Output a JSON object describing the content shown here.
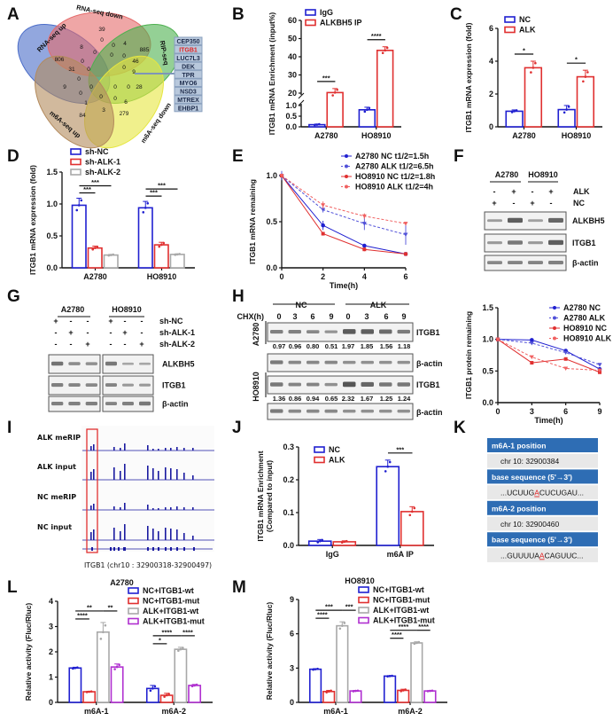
{
  "panel_labels": [
    "A",
    "B",
    "C",
    "D",
    "E",
    "F",
    "G",
    "H",
    "I",
    "J",
    "K",
    "L",
    "M"
  ],
  "venn": {
    "sets": [
      {
        "name": "RNA-seq up",
        "color": "#4a6cc8"
      },
      {
        "name": "RNA-seq down",
        "color": "#e56b6b"
      },
      {
        "name": "RIP-seq",
        "color": "#4db04f"
      },
      {
        "name": "m6A-seq down",
        "color": "#e6e640"
      },
      {
        "name": "m6A-seq up",
        "color": "#b38a5c"
      }
    ],
    "counts": [
      "39",
      "0",
      "0",
      "4",
      "885",
      "806",
      "8",
      "0",
      "0",
      "0",
      "46",
      "31",
      "0",
      "0",
      "0",
      "9",
      "0",
      "0",
      "0",
      "0",
      "28",
      "9",
      "0",
      "1",
      "0",
      "0",
      "6",
      "84",
      "3",
      "279"
    ],
    "genes": [
      "CEP350",
      "ITGB1",
      "LUC7L3",
      "DEK",
      "TPR",
      "MYO6",
      "NSD3",
      "MTREX",
      "EHBP1"
    ],
    "highlight_gene": "ITGB1",
    "highlight_color": "#e02020"
  },
  "chart_data": [
    {
      "id": "B",
      "type": "bar",
      "ylabel": "ITGB1 mRNA Enrichment (input%)",
      "categories": [
        "A2780",
        "HO8910"
      ],
      "yticks": [
        0.0,
        0.5,
        1.0,
        20,
        30,
        40,
        50,
        60
      ],
      "ylim": [
        0,
        60
      ],
      "broken_axis": [
        1,
        20
      ],
      "series": [
        {
          "name": "IgG",
          "color": "#2020d0",
          "values": [
            0.1,
            0.8
          ],
          "errors": [
            0.03,
            0.12
          ]
        },
        {
          "name": "ALKBH5 IP",
          "color": "#e03030",
          "values": [
            20.3,
            43.5
          ],
          "errors": [
            2.2,
            2.0
          ]
        }
      ],
      "significance": [
        {
          "category": "A2780",
          "label": "***"
        },
        {
          "category": "HO8910",
          "label": "****"
        }
      ]
    },
    {
      "id": "C",
      "type": "bar",
      "ylabel": "ITGB1 mRNA expression (fold)",
      "categories": [
        "A2780",
        "HO8910"
      ],
      "yticks": [
        0,
        2,
        4,
        6
      ],
      "ylim": [
        0,
        6
      ],
      "series": [
        {
          "name": "NC",
          "color": "#2020d0",
          "values": [
            0.95,
            1.05
          ],
          "errors": [
            0.08,
            0.25
          ]
        },
        {
          "name": "ALK",
          "color": "#e03030",
          "values": [
            3.6,
            3.05
          ],
          "errors": [
            0.4,
            0.4
          ]
        }
      ],
      "significance": [
        {
          "category": "A2780",
          "label": "*"
        },
        {
          "category": "HO8910",
          "label": "*"
        }
      ]
    },
    {
      "id": "D",
      "type": "bar",
      "ylabel": "ITGB1 mRNA expression (fold)",
      "categories": [
        "A2780",
        "HO8910"
      ],
      "yticks": [
        0.0,
        0.5,
        1.0,
        1.5
      ],
      "ylim": [
        0,
        1.5
      ],
      "series": [
        {
          "name": "sh-NC",
          "color": "#2020d0",
          "values": [
            0.98,
            0.94
          ],
          "errors": [
            0.11,
            0.1
          ]
        },
        {
          "name": "sh-ALK-1",
          "color": "#e03030",
          "values": [
            0.31,
            0.36
          ],
          "errors": [
            0.03,
            0.04
          ]
        },
        {
          "name": "sh-ALK-2",
          "color": "#a8a8a8",
          "values": [
            0.2,
            0.21
          ],
          "errors": [
            0.01,
            0.01
          ]
        }
      ],
      "significance": [
        {
          "category": "A2780",
          "label": "***"
        },
        {
          "category": "A2780",
          "label": "***"
        },
        {
          "category": "HO8910",
          "label": "***"
        },
        {
          "category": "HO8910",
          "label": "***"
        }
      ]
    },
    {
      "id": "E",
      "type": "line",
      "xlabel": "Time(h)",
      "ylabel": "ITGB1 mRNA remaining",
      "x": [
        0,
        2,
        4,
        6
      ],
      "xticks": [
        0,
        2,
        4,
        6
      ],
      "yticks": [
        0.0,
        0.5,
        1.0
      ],
      "xlim": [
        0,
        6
      ],
      "ylim": [
        0,
        1.1
      ],
      "series": [
        {
          "name": "A2780 NC t1/2=1.5h",
          "color": "#2020d0",
          "dashed": false,
          "marker": "circle",
          "values": [
            1.0,
            0.46,
            0.24,
            0.15
          ],
          "errors": [
            0.03,
            0.05,
            0.02,
            0.02
          ]
        },
        {
          "name": "A2780 ALK t1/2=6.5h",
          "color": "#5050d8",
          "dashed": true,
          "marker": "triangle",
          "values": [
            1.0,
            0.63,
            0.48,
            0.36
          ],
          "errors": [
            0.05,
            0.03,
            0.07,
            0.11
          ]
        },
        {
          "name": "HO8910 NC t1/2=1.8h",
          "color": "#e03030",
          "dashed": false,
          "marker": "square",
          "values": [
            1.0,
            0.37,
            0.2,
            0.15
          ],
          "errors": [
            0.02,
            0.02,
            0.02,
            0.01
          ]
        },
        {
          "name": "HO8910 ALK t1/2=4h",
          "color": "#f06060",
          "dashed": true,
          "marker": "triangle",
          "values": [
            1.0,
            0.68,
            0.56,
            0.48
          ],
          "errors": [
            0.02,
            0.04,
            0.03,
            0.02
          ]
        }
      ]
    },
    {
      "id": "H-plot",
      "type": "line",
      "xlabel": "Time(h)",
      "ylabel": "ITGB1 protein remaining",
      "x": [
        0,
        3,
        6,
        9
      ],
      "xticks": [
        0,
        3,
        6,
        9
      ],
      "yticks": [
        0.0,
        0.5,
        1.0,
        1.5
      ],
      "xlim": [
        0,
        9
      ],
      "ylim": [
        0,
        1.5
      ],
      "series": [
        {
          "name": "A2780 NC",
          "color": "#2020d0",
          "dashed": false,
          "marker": "circle",
          "values": [
            1.0,
            0.99,
            0.82,
            0.53
          ]
        },
        {
          "name": "A2780 ALK",
          "color": "#5050d8",
          "dashed": true,
          "marker": "triangle",
          "values": [
            1.0,
            0.94,
            0.79,
            0.6
          ]
        },
        {
          "name": "HO8910 NC",
          "color": "#e03030",
          "dashed": false,
          "marker": "square",
          "values": [
            1.0,
            0.63,
            0.69,
            0.48
          ]
        },
        {
          "name": "HO8910 ALK",
          "color": "#f06060",
          "dashed": true,
          "marker": "triangle",
          "values": [
            1.0,
            0.72,
            0.54,
            0.51
          ]
        }
      ]
    },
    {
      "id": "J",
      "type": "bar",
      "ylabel": "ITGB1 mRNA Enrichment",
      "ylabel2": "(Compared to input)",
      "categories": [
        "IgG",
        "m6A IP"
      ],
      "yticks": [
        0.0,
        0.1,
        0.2,
        0.3
      ],
      "ylim": [
        0,
        0.3
      ],
      "series": [
        {
          "name": "NC",
          "color": "#2020d0",
          "values": [
            0.013,
            0.24
          ],
          "errors": [
            0.005,
            0.02
          ]
        },
        {
          "name": "ALK",
          "color": "#e03030",
          "values": [
            0.011,
            0.103
          ],
          "errors": [
            0.003,
            0.015
          ]
        }
      ],
      "significance": [
        {
          "category": "m6A IP",
          "label": "***"
        }
      ]
    },
    {
      "id": "L",
      "type": "bar",
      "title": "A2780",
      "ylabel": "Relative activity (Fluc/Rluc)",
      "categories": [
        "m6A-1",
        "m6A-2"
      ],
      "yticks": [
        0,
        1,
        2,
        3,
        4
      ],
      "ylim": [
        0,
        4
      ],
      "series": [
        {
          "name": "NC+ITGB1-wt",
          "color": "#2020d0",
          "values": [
            1.36,
            0.55
          ],
          "errors": [
            0.03,
            0.12
          ]
        },
        {
          "name": "NC+ITGB1-mut",
          "color": "#e03030",
          "values": [
            0.42,
            0.28
          ],
          "errors": [
            0.02,
            0.08
          ]
        },
        {
          "name": "ALK+ITGB1-wt",
          "color": "#a8a8a8",
          "values": [
            2.78,
            2.1
          ],
          "errors": [
            0.38,
            0.08
          ]
        },
        {
          "name": "ALK+ITGB1-mut",
          "color": "#b030d0",
          "values": [
            1.4,
            0.67
          ],
          "errors": [
            0.12,
            0.04
          ]
        }
      ],
      "significance": [
        {
          "category": "m6A-1",
          "label": "****"
        },
        {
          "category": "m6A-1",
          "label": "**"
        },
        {
          "category": "m6A-1",
          "label": "**"
        },
        {
          "category": "m6A-2",
          "label": "*"
        },
        {
          "category": "m6A-2",
          "label": "****"
        },
        {
          "category": "m6A-2",
          "label": "****"
        }
      ]
    },
    {
      "id": "M",
      "type": "bar",
      "title": "HO8910",
      "ylabel": "Relative activity (Fluc/Rluc)",
      "categories": [
        "m6A-1",
        "m6A-2"
      ],
      "yticks": [
        0,
        3,
        6,
        9
      ],
      "ylim": [
        0,
        9
      ],
      "series": [
        {
          "name": "NC+ITGB1-wt",
          "color": "#2020d0",
          "values": [
            2.9,
            2.3
          ],
          "errors": [
            0.05,
            0.04
          ]
        },
        {
          "name": "NC+ITGB1-mut",
          "color": "#e03030",
          "values": [
            0.95,
            1.05
          ],
          "errors": [
            0.1,
            0.1
          ]
        },
        {
          "name": "ALK+ITGB1-wt",
          "color": "#a8a8a8",
          "values": [
            6.7,
            5.2
          ],
          "errors": [
            0.35,
            0.1
          ]
        },
        {
          "name": "ALK+ITGB1-mut",
          "color": "#b030d0",
          "values": [
            1.0,
            1.0
          ],
          "errors": [
            0.04,
            0.03
          ]
        }
      ],
      "significance": [
        {
          "category": "m6A-1",
          "label": "****"
        },
        {
          "category": "m6A-1",
          "label": "***"
        },
        {
          "category": "m6A-1",
          "label": "***"
        },
        {
          "category": "m6A-2",
          "label": "****"
        },
        {
          "category": "m6A-2",
          "label": "****"
        },
        {
          "category": "m6A-2",
          "label": "****"
        }
      ]
    }
  ],
  "blot_F": {
    "cells": [
      "A2780",
      "HO8910"
    ],
    "rows": [
      {
        "label": "ALK",
        "signs": [
          "-",
          "+",
          "-",
          "+"
        ]
      },
      {
        "label": "NC",
        "signs": [
          "+",
          "-",
          "+",
          "-"
        ]
      }
    ],
    "bands": [
      "ALKBH5",
      "ITGB1",
      "β-actin"
    ]
  },
  "blot_G": {
    "cells": [
      "A2780",
      "HO8910"
    ],
    "rows": [
      {
        "label": "sh-NC",
        "signs": [
          "+",
          "-",
          "-",
          "+",
          "-",
          "-"
        ]
      },
      {
        "label": "sh-ALK-1",
        "signs": [
          "-",
          "+",
          "-",
          "-",
          "+",
          "-"
        ]
      },
      {
        "label": "sh-ALK-2",
        "signs": [
          "-",
          "-",
          "+",
          "-",
          "-",
          "+"
        ]
      }
    ],
    "bands": [
      "ALKBH5",
      "ITGB1",
      "β-actin"
    ]
  },
  "blot_H": {
    "groups": [
      "NC",
      "ALK"
    ],
    "time_label": "CHX(h)",
    "times": [
      "0",
      "3",
      "6",
      "9",
      "0",
      "3",
      "6",
      "9"
    ],
    "cells": [
      "A2780",
      "HO8910"
    ],
    "bands": [
      "ITGB1",
      "β-actin"
    ],
    "quant_A2780": [
      "0.97",
      "0.96",
      "0.80",
      "0.51",
      "1.97",
      "1.85",
      "1.56",
      "1.18"
    ],
    "quant_HO8910": [
      "1.36",
      "0.86",
      "0.94",
      "0.65",
      "2.32",
      "1.67",
      "1.25",
      "1.24"
    ]
  },
  "tracks_I": {
    "tracks": [
      "ALK meRIP",
      "ALK  input",
      "NC meRIP",
      "NC  input"
    ],
    "caption": "ITGB1 (chr10 : 32900318-32900497)",
    "highlight_color": "#e03030",
    "track_color": "#1a1aa0"
  },
  "table_K": {
    "header_color": "#2e6db4",
    "rows": [
      {
        "type": "header",
        "text": "m6A-1 position"
      },
      {
        "type": "value",
        "text": "chr 10: 32900384"
      },
      {
        "type": "header",
        "text": "base sequence (5'→3')"
      },
      {
        "type": "seq",
        "pre": "...UCUUG",
        "mark": "A",
        "post": "CUCUGAU..."
      },
      {
        "type": "header",
        "text": "m6A-2 position"
      },
      {
        "type": "value",
        "text": "chr 10: 32900460"
      },
      {
        "type": "header",
        "text": "base sequence (5'→3')"
      },
      {
        "type": "seq",
        "pre": "...GUUUUA",
        "mark": "A",
        "post": "CAGUUC..."
      }
    ]
  }
}
